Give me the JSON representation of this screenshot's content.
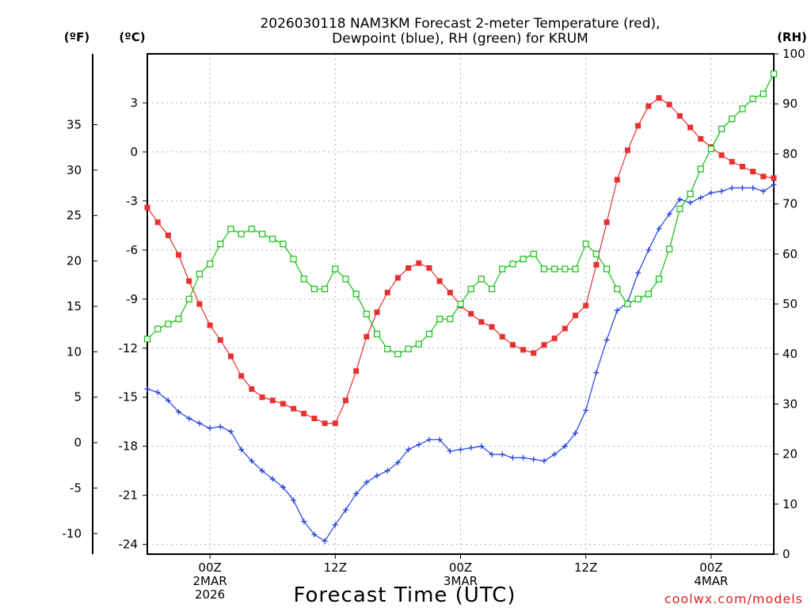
{
  "chart_data": {
    "type": "line",
    "title_line1": "2026030118 NAM3KM Forecast 2-meter Temperature (red),",
    "title_line2": "Dewpoint (blue), RH (green) for KRUM",
    "unit_f": "(ºF)",
    "unit_c": "(ºC)",
    "unit_rh": "(RH)",
    "xlabel": "Forecast Time (UTC)",
    "credit": "coolwx.com/models",
    "x_hours": [
      18,
      19,
      20,
      21,
      22,
      23,
      24,
      25,
      26,
      27,
      28,
      29,
      30,
      31,
      32,
      33,
      34,
      35,
      36,
      37,
      38,
      39,
      40,
      41,
      42,
      43,
      44,
      45,
      46,
      47,
      48,
      49,
      50,
      51,
      52,
      53,
      54,
      55,
      56,
      57,
      58,
      59,
      60,
      61,
      62,
      63,
      64,
      65,
      66,
      67,
      68,
      69,
      70,
      71,
      72,
      73,
      74,
      75,
      76,
      77,
      78
    ],
    "xlim": [
      18,
      78
    ],
    "x_ticks": [
      {
        "hour": 24,
        "lines": [
          "00Z",
          "2MAR",
          "2026"
        ]
      },
      {
        "hour": 36,
        "lines": [
          "12Z"
        ]
      },
      {
        "hour": 48,
        "lines": [
          "00Z",
          "3MAR"
        ]
      },
      {
        "hour": 60,
        "lines": [
          "12Z"
        ]
      },
      {
        "hour": 72,
        "lines": [
          "00Z",
          "4MAR"
        ]
      }
    ],
    "c_axis": {
      "ylim": [
        -24.6,
        6.0
      ],
      "ticks": [
        -24,
        -21,
        -18,
        -15,
        -12,
        -9,
        -6,
        -3,
        0,
        3
      ]
    },
    "f_axis": {
      "ticks": [
        -10,
        -5,
        0,
        5,
        10,
        15,
        20,
        25,
        30,
        35
      ]
    },
    "rh_axis": {
      "ylim": [
        0,
        100
      ],
      "ticks": [
        0,
        10,
        20,
        30,
        40,
        50,
        60,
        70,
        80,
        90,
        100
      ]
    },
    "colors": {
      "temperature": "#e83030",
      "dewpoint": "#2040e0",
      "rh": "#10c010",
      "grid": "#b0b0b0"
    },
    "series": [
      {
        "name": "Temperature",
        "units": "C",
        "marker": "filled-square",
        "values": [
          -3.4,
          -4.3,
          -5.1,
          -6.3,
          -7.9,
          -9.3,
          -10.6,
          -11.5,
          -12.5,
          -13.7,
          -14.5,
          -15.0,
          -15.2,
          -15.4,
          -15.7,
          -16.0,
          -16.3,
          -16.6,
          -16.6,
          -15.2,
          -13.4,
          -11.3,
          -9.8,
          -8.6,
          -7.7,
          -7.1,
          -6.8,
          -7.1,
          -7.9,
          -8.6,
          -9.4,
          -9.9,
          -10.4,
          -10.7,
          -11.3,
          -11.8,
          -12.1,
          -12.3,
          -11.8,
          -11.4,
          -10.8,
          -10.0,
          -9.4,
          -6.9,
          -4.3,
          -1.7,
          0.1,
          1.6,
          2.8,
          3.3,
          2.9,
          2.2,
          1.5,
          0.8,
          0.3,
          -0.2,
          -0.6,
          -0.9,
          -1.2,
          -1.5,
          -1.6
        ]
      },
      {
        "name": "Dewpoint",
        "units": "C",
        "marker": "plus",
        "values": [
          -14.5,
          -14.7,
          -15.2,
          -15.9,
          -16.3,
          -16.6,
          -16.9,
          -16.8,
          -17.1,
          -18.2,
          -18.9,
          -19.5,
          -20.0,
          -20.5,
          -21.3,
          -22.6,
          -23.4,
          -23.8,
          -22.8,
          -21.9,
          -20.9,
          -20.2,
          -19.8,
          -19.5,
          -19.0,
          -18.2,
          -17.9,
          -17.6,
          -17.6,
          -18.3,
          -18.2,
          -18.1,
          -18.0,
          -18.5,
          -18.5,
          -18.7,
          -18.7,
          -18.8,
          -18.9,
          -18.5,
          -18.0,
          -17.2,
          -15.8,
          -13.5,
          -11.5,
          -9.7,
          -9.2,
          -7.4,
          -6.0,
          -4.7,
          -3.8,
          -2.9,
          -3.1,
          -2.8,
          -2.5,
          -2.4,
          -2.2,
          -2.2,
          -2.2,
          -2.4,
          -2.0
        ]
      },
      {
        "name": "RH",
        "units": "%",
        "marker": "open-square",
        "values": [
          43,
          45,
          46,
          47,
          51,
          56,
          58,
          62,
          65,
          64,
          65,
          64,
          63,
          62,
          59,
          55,
          53,
          53,
          57,
          55,
          52,
          48,
          44,
          41,
          40,
          41,
          42,
          44,
          47,
          47,
          50,
          53,
          55,
          53,
          57,
          58,
          59,
          60,
          57,
          57,
          57,
          57,
          62,
          60,
          57,
          53,
          50,
          51,
          52,
          55,
          61,
          69,
          72,
          77,
          81,
          85,
          87,
          89,
          91,
          92,
          96
        ]
      }
    ]
  }
}
